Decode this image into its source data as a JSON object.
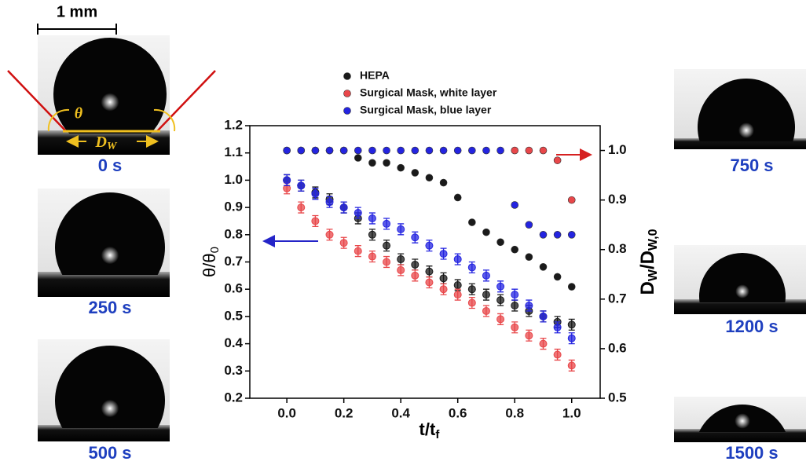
{
  "chart_data": {
    "type": "scatter",
    "x_label": "t/t",
    "x_label_sub": "f",
    "y_label": "θ/θ",
    "y_label_sub": "0",
    "y2_label": "D",
    "y2_label_sub": "W",
    "y2_label_mid": "/D",
    "y2_label_sub2": "W,0",
    "x": [
      0,
      0.05,
      0.1,
      0.15,
      0.2,
      0.25,
      0.3,
      0.35,
      0.4,
      0.45,
      0.5,
      0.55,
      0.6,
      0.65,
      0.7,
      0.75,
      0.8,
      0.85,
      0.9,
      0.95,
      1.0
    ],
    "xlim": [
      -0.13,
      1.1
    ],
    "xticks": [
      {
        "value": 0,
        "label": "0.0"
      },
      0.2,
      0.4,
      0.6,
      0.8,
      {
        "value": 1,
        "label": "1.0"
      }
    ],
    "ylim": [
      0.2,
      1.2
    ],
    "yticks": [
      0.2,
      0.3,
      0.4,
      0.5,
      0.6,
      0.7,
      0.8,
      0.9,
      {
        "value": 1,
        "label": "1.0"
      },
      1.1,
      1.2
    ],
    "y2lim": [
      0.5,
      1.05
    ],
    "y2ticks": [
      0.5,
      0.6,
      0.7,
      0.8,
      0.9,
      {
        "value": 1,
        "label": "1.0"
      }
    ],
    "series": [
      {
        "name": "HEPA",
        "color": "#1a1a1a",
        "error": 0.02,
        "values": [
          1.0,
          0.98,
          0.955,
          0.93,
          0.9,
          0.86,
          0.8,
          0.76,
          0.71,
          0.69,
          0.665,
          0.64,
          0.615,
          0.6,
          0.58,
          0.56,
          0.54,
          0.52,
          0.5,
          0.48,
          0.47
        ],
        "dw_values": [
          1,
          1,
          1,
          1,
          1,
          0.985,
          0.975,
          0.975,
          0.965,
          0.955,
          0.945,
          0.935,
          0.905,
          0.855,
          0.835,
          0.815,
          0.8,
          0.785,
          0.765,
          0.745,
          0.725
        ]
      },
      {
        "name": "Surgical Mask, white layer",
        "color": "#e8474a",
        "error": 0.02,
        "values": [
          0.97,
          0.9,
          0.85,
          0.8,
          0.77,
          0.74,
          0.72,
          0.7,
          0.67,
          0.65,
          0.625,
          0.6,
          0.58,
          0.55,
          0.52,
          0.49,
          0.46,
          0.43,
          0.4,
          0.36,
          0.32
        ],
        "dw_values": [
          null,
          null,
          null,
          null,
          null,
          null,
          null,
          null,
          null,
          null,
          null,
          null,
          null,
          null,
          null,
          null,
          1,
          1,
          1,
          0.98,
          0.9
        ]
      },
      {
        "name": "Surgical Mask, blue layer",
        "color": "#2424e0",
        "error": 0.02,
        "values": [
          1.0,
          0.98,
          0.95,
          0.92,
          0.9,
          0.88,
          0.86,
          0.84,
          0.82,
          0.79,
          0.76,
          0.73,
          0.71,
          0.68,
          0.65,
          0.61,
          0.58,
          0.54,
          0.5,
          0.46,
          0.42
        ],
        "dw_values": [
          1,
          1,
          1,
          1,
          1,
          1,
          1,
          1,
          1,
          1,
          1,
          1,
          1,
          1,
          1,
          1,
          0.89,
          0.85,
          0.83,
          0.83,
          0.83
        ]
      }
    ]
  },
  "scale_bar": "1 mm",
  "annotations": {
    "theta": "θ",
    "dw": "D",
    "dw_sub": "W"
  },
  "frames": [
    {
      "label": "0 s"
    },
    {
      "label": "250 s"
    },
    {
      "label": "500 s"
    },
    {
      "label": "750 s"
    },
    {
      "label": "1200 s"
    },
    {
      "label": "1500 s"
    }
  ]
}
